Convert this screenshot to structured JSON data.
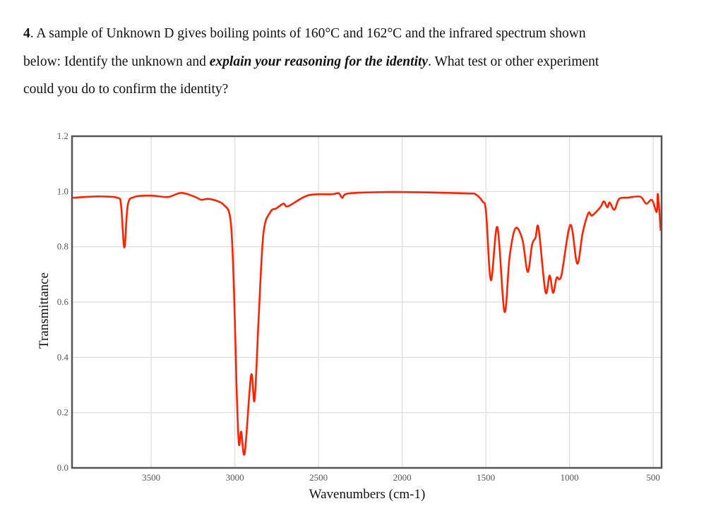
{
  "question": {
    "number": "4",
    "line1": ". A sample of Unknown D gives boiling points of 160°C and 162°C and the infrared spectrum shown",
    "line2_a": "below: Identify the unknown and ",
    "line2_em": "explain your reasoning for the identity",
    "line2_b": ". What test or other experiment",
    "line3": "could you do to confirm the identity?"
  },
  "chart_data": {
    "type": "line",
    "title": "",
    "xlabel": "Wavenumbers (cm-1)",
    "ylabel": "Transmittance",
    "xlim": [
      3973,
      450
    ],
    "x_reversed": true,
    "ylim": [
      0,
      1.2
    ],
    "grid": true,
    "x_ticks": [
      3500,
      3000,
      2500,
      2000,
      1500,
      1000,
      500
    ],
    "y_ticks": [
      "0.0",
      "0.2",
      "0.4",
      "0.6",
      "0.8",
      "1.0",
      "1.2"
    ],
    "line_color": "#ff2200",
    "series": [
      {
        "x": [
          3968,
          3900,
          3800,
          3700,
          3680,
          3660,
          3640,
          3601,
          3500,
          3400,
          3320,
          3236,
          3201,
          3151,
          3067,
          3025,
          3005,
          2990,
          2976,
          2962,
          2941,
          2903,
          2882,
          2857,
          2829,
          2787,
          2752,
          2709,
          2681,
          2562,
          2420,
          2380,
          2359,
          2340,
          2280,
          2100,
          2000,
          1800,
          1600,
          1562,
          1520,
          1499,
          1470,
          1431,
          1389,
          1358,
          1323,
          1281,
          1250,
          1224,
          1203,
          1185,
          1144,
          1119,
          1098,
          1077,
          1049,
          995,
          954,
          922,
          887,
          866,
          816,
          795,
          774,
          760,
          732,
          704,
          650,
          577,
          542,
          507,
          479,
          472,
          455
        ],
        "y": [
          0.977,
          0.98,
          0.982,
          0.977,
          0.95,
          0.797,
          0.95,
          0.98,
          0.985,
          0.98,
          0.995,
          0.98,
          0.97,
          0.973,
          0.952,
          0.892,
          0.637,
          0.297,
          0.088,
          0.131,
          0.054,
          0.335,
          0.246,
          0.552,
          0.849,
          0.926,
          0.939,
          0.956,
          0.947,
          0.986,
          0.99,
          0.994,
          0.977,
          0.99,
          0.995,
          0.998,
          0.998,
          0.996,
          0.993,
          0.99,
          0.964,
          0.926,
          0.679,
          0.871,
          0.565,
          0.765,
          0.867,
          0.824,
          0.709,
          0.807,
          0.833,
          0.867,
          0.637,
          0.696,
          0.633,
          0.688,
          0.696,
          0.879,
          0.739,
          0.849,
          0.922,
          0.913,
          0.943,
          0.964,
          0.943,
          0.96,
          0.934,
          0.973,
          0.978,
          0.981,
          0.956,
          0.969,
          0.926,
          0.99,
          0.858
        ]
      }
    ]
  }
}
